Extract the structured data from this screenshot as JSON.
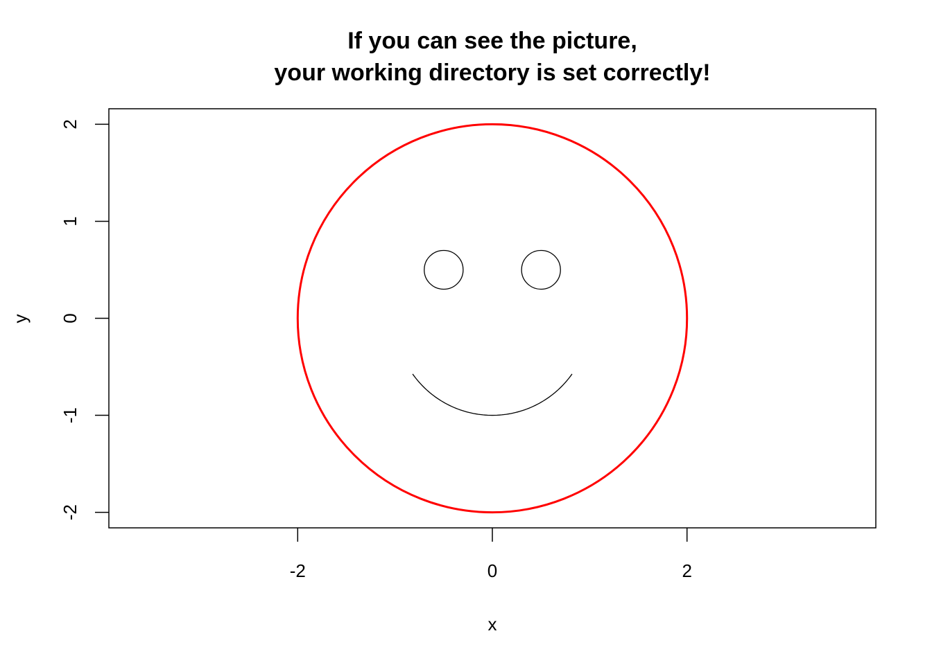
{
  "chart_data": {
    "type": "line",
    "title": "If you can see the picture,",
    "subtitle": "your working directory is set correctly!",
    "xlabel": "x",
    "ylabel": "y",
    "xlim": [
      -3.94,
      3.94
    ],
    "ylim": [
      -2.16,
      2.16
    ],
    "x_ticks": [
      -2,
      0,
      2
    ],
    "x_tick_labels": [
      "-2",
      "0",
      "2"
    ],
    "y_ticks": [
      -2,
      -1,
      0,
      1,
      2
    ],
    "y_tick_labels": [
      "-2",
      "-1",
      "0",
      "1",
      "2"
    ],
    "grid": false,
    "series": [
      {
        "shape": "circle",
        "center": [
          0,
          0
        ],
        "radius": 2,
        "color": "#ff0000",
        "line_width": 3
      },
      {
        "shape": "circle",
        "center": [
          -0.5,
          0.5
        ],
        "radius": 0.2,
        "color": "#000000",
        "line_width": 1.3
      },
      {
        "shape": "circle",
        "center": [
          0.5,
          0.5
        ],
        "radius": 0.2,
        "color": "#000000",
        "line_width": 1.3
      },
      {
        "shape": "arc",
        "center": [
          0,
          0
        ],
        "radius": 1,
        "start_angle_deg": 215,
        "end_angle_deg": 325,
        "color": "#000000",
        "line_width": 1.3
      }
    ]
  }
}
